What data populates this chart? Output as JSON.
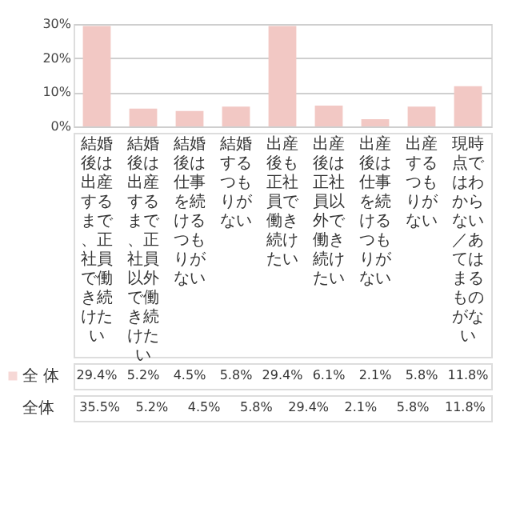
{
  "chart_data": {
    "type": "bar",
    "categories": [
      "結婚後は出産するまで、正社員で働き続けたい",
      "結婚後は出産するまで、正社員以外で働き続けたい",
      "結婚後は仕事を続けるつもりがない",
      "結婚するつもりがない",
      "出産後も正社員で働き続けたい",
      "出産後は正社員以外で働き続けたい",
      "出産後は仕事を続けるつもりがない",
      "出産するつもりがない",
      "現時点ではわからない／あてはまるものがない"
    ],
    "series": [
      {
        "name": "全 体",
        "color": "#f2c8c4",
        "values": [
          29.4,
          5.2,
          4.5,
          5.8,
          29.4,
          6.1,
          2.1,
          5.8,
          11.8
        ],
        "value_labels": [
          "29.4%",
          "5.2%",
          "4.5%",
          "5.8%",
          "29.4%",
          "6.1%",
          "2.1%",
          "5.8%",
          "11.8%"
        ]
      }
    ],
    "ylim": [
      0,
      30
    ],
    "yticks": [
      {
        "value": 0,
        "label": "0%"
      },
      {
        "value": 10,
        "label": "10%"
      },
      {
        "value": 20,
        "label": "20%"
      },
      {
        "value": 30,
        "label": "30%"
      }
    ],
    "grid": "y",
    "annotations": [
      "全体",
      "35.5%",
      "5.2%",
      "4.5%",
      "5.8%",
      "29.4%",
      "2.1%",
      "5.8%",
      "11.8%"
    ]
  }
}
